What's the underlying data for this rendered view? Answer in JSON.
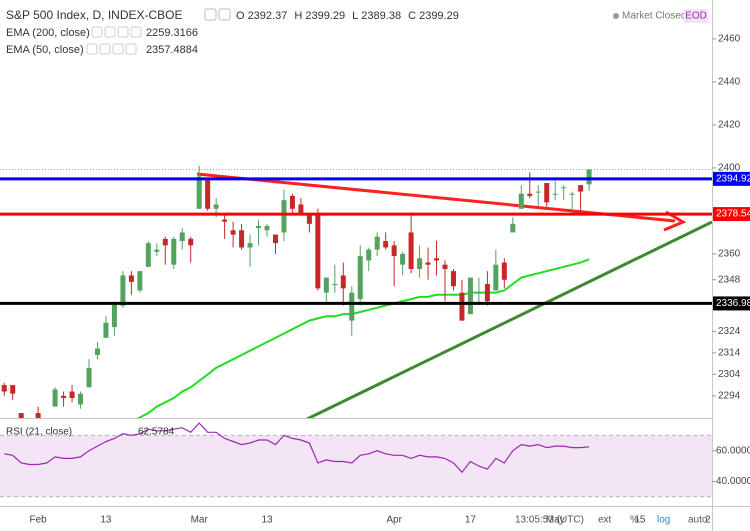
{
  "header": {
    "symbol": "S&P 500 Index, D, INDEX-CBOE",
    "ohlc_labels": [
      "O",
      "H",
      "L",
      "C"
    ],
    "status": "Market Closed",
    "eod": "EOD"
  },
  "toolbar": {
    "time": "13:05:53 (UTC)",
    "buttons": [
      "ext",
      "%",
      "log",
      "auto"
    ]
  },
  "chart_data": [
    {
      "type": "candlestick",
      "categories": [
        null,
        null,
        null,
        null,
        "Feb",
        null,
        null,
        null,
        null,
        null,
        null,
        null,
        "13",
        null,
        null,
        null,
        null,
        null,
        null,
        null,
        null,
        null,
        null,
        "Mar",
        null,
        null,
        null,
        null,
        null,
        null,
        null,
        "13",
        null,
        null,
        null,
        null,
        null,
        null,
        null,
        null,
        null,
        null,
        null,
        null,
        null,
        null,
        "Apr",
        null,
        null,
        null,
        null,
        null,
        null,
        null,
        null,
        "17",
        null,
        null,
        null,
        null,
        null,
        null,
        null,
        null,
        null,
        "May",
        null,
        null,
        null,
        null,
        null,
        null,
        null,
        null,
        null,
        "15",
        null,
        null,
        null,
        null,
        null,
        null,
        null,
        "2"
      ],
      "open": [
        2299,
        2299,
        2286,
        2275,
        2286,
        2277,
        2289,
        2294,
        2296,
        2290,
        2298,
        2313,
        2321,
        2326,
        2336,
        2350,
        2343,
        2354,
        2361,
        2367,
        2355,
        2366,
        2367,
        2381,
        2395,
        2381,
        2376,
        2371,
        2371,
        2363,
        2372,
        2371,
        2369,
        2370,
        2387,
        2383,
        2378,
        2379,
        2342,
        2346,
        2350,
        2329,
        2339,
        2357,
        2362,
        2366,
        2364,
        2355,
        2370,
        2353,
        2356,
        2358,
        2355,
        2352,
        2342,
        2332,
        2342,
        2346,
        2343,
        2356,
        2370,
        2381,
        2388,
        2389,
        2393,
        2388,
        2391,
        2388,
        2392,
        2392.37,
        null,
        null,
        null,
        null,
        null,
        null,
        null,
        null,
        null,
        null,
        null,
        null,
        null,
        null
      ],
      "high": [
        2300,
        2299,
        2286,
        2281,
        2289,
        2283,
        2298,
        2296,
        2299,
        2296,
        2311,
        2319,
        2331,
        2338,
        2352,
        2352,
        2352,
        2366,
        2365,
        2368,
        2368,
        2372,
        2368,
        2401,
        2395,
        2386,
        2379,
        2375,
        2374,
        2369,
        2376,
        2374,
        2369,
        2390,
        2388,
        2386,
        2379,
        2381,
        2349,
        2355,
        2356,
        2345,
        2364,
        2363,
        2370,
        2370,
        2366,
        2361,
        2378,
        2364,
        2363,
        2366,
        2357,
        2353,
        2348,
        2349,
        2349,
        2352,
        2362,
        2358,
        2377,
        2392,
        2398,
        2392,
        2393,
        2394,
        2392,
        2389,
        2392,
        2399.29,
        null,
        null,
        null,
        null,
        null,
        null,
        null,
        null,
        null,
        null,
        null,
        null,
        null,
        null
      ],
      "low": [
        2294,
        2292,
        2268,
        2267,
        2272,
        2271,
        2289,
        2289,
        2291,
        2288,
        2298,
        2311,
        2321,
        2322,
        2335,
        2341,
        2342,
        2354,
        2359,
        2355,
        2353,
        2362,
        2356,
        2381,
        2380,
        2377,
        2367,
        2363,
        2362,
        2354,
        2364,
        2368,
        2360,
        2366,
        2378,
        2378,
        2370,
        2343,
        2337,
        2342,
        2336,
        2322,
        2336,
        2352,
        2359,
        2362,
        2345,
        2350,
        2351,
        2349,
        2348,
        2350,
        2338,
        2343,
        2329,
        2332,
        2337,
        2336,
        2343,
        2344,
        2370,
        2381,
        2386,
        2382,
        2382,
        2385,
        2385,
        2380,
        2380,
        2389.38,
        null,
        null,
        null,
        null,
        null,
        null,
        null,
        null,
        null,
        null,
        null,
        null,
        null,
        null
      ],
      "close": [
        2296,
        2295,
        2281,
        2279,
        2279,
        2281,
        2297,
        2293,
        2293,
        2295,
        2307,
        2316,
        2328,
        2337,
        2350,
        2347,
        2352,
        2365,
        2362,
        2364,
        2367,
        2370,
        2364,
        2396,
        2381,
        2383,
        2375,
        2369,
        2363,
        2365,
        2373,
        2373,
        2365,
        2385,
        2381,
        2378,
        2374,
        2344,
        2349,
        2346,
        2344,
        2342,
        2359,
        2362,
        2368,
        2363,
        2359,
        2360,
        2353,
        2358,
        2355,
        2357,
        2353,
        2345,
        2329,
        2349,
        2342,
        2338,
        2355,
        2348,
        2374,
        2388,
        2387,
        2389,
        2384,
        2388,
        2391,
        2388,
        2389,
        2399.29,
        null,
        null,
        null,
        null,
        null,
        null,
        null,
        null,
        null,
        null,
        null,
        null,
        null,
        null
      ],
      "up_color": "#53a25f",
      "down_color": "#c62828",
      "indicators": [
        {
          "name": "EMA (200, close)",
          "color": "#e53935",
          "last": 2259.3166
        },
        {
          "name": "EMA (50, close)",
          "color": "#22dd22",
          "values": [
            2268,
            2269,
            2270,
            2270,
            2270,
            2271,
            2272,
            2273,
            2273,
            2274,
            2275,
            2276,
            2277,
            2279,
            2281,
            2282,
            2284,
            2286,
            2289,
            2291,
            2293,
            2296,
            2298,
            2301,
            2304,
            2307,
            2309,
            2311,
            2313,
            2315,
            2317,
            2319,
            2321,
            2323,
            2325,
            2327,
            2329,
            2330,
            2331,
            2331,
            2332,
            2332,
            2333,
            2334,
            2335,
            2336,
            2337,
            2338,
            2339,
            2340,
            2340,
            2341,
            2341,
            2341,
            2341,
            2342,
            2342,
            2342,
            2342,
            2343,
            2346,
            2349,
            2350,
            2351,
            2352,
            2353,
            2354,
            2355,
            2356,
            2357.4884,
            null,
            null,
            null,
            null,
            null,
            null,
            null,
            null,
            null,
            null,
            null,
            null,
            null,
            null
          ]
        }
      ],
      "hlines": [
        {
          "value": 2394.92,
          "color": "#0000ff"
        },
        {
          "value": 2378.54,
          "color": "#ff0000"
        },
        {
          "value": 2336.98,
          "color": "#000000"
        }
      ],
      "ylim": [
        2283.7,
        2478.1
      ],
      "yticks": [
        2460,
        2440,
        2420,
        2400,
        2360,
        2348,
        2324,
        2314,
        2304,
        2294
      ]
    },
    {
      "type": "rsi",
      "title": "RSI (21, close)",
      "color": "#9c27b0",
      "values": [
        58,
        57,
        52,
        51,
        51,
        52,
        56,
        55,
        55,
        56,
        60,
        63,
        66,
        68,
        71,
        70,
        71,
        74,
        73,
        73,
        74,
        75,
        72,
        78,
        72,
        72,
        68,
        66,
        64,
        65,
        67,
        67,
        64,
        70,
        68,
        67,
        65,
        52,
        54,
        53,
        53,
        52,
        57,
        58,
        60,
        58,
        57,
        57,
        55,
        57,
        56,
        56,
        55,
        52,
        46,
        53,
        50,
        48,
        55,
        52,
        60,
        64,
        63,
        64,
        62,
        63,
        63,
        62,
        62,
        62.5784,
        null,
        null,
        null,
        null,
        null,
        null,
        null,
        null,
        null,
        null,
        null,
        null,
        null,
        null
      ],
      "band": [
        30,
        70
      ],
      "ylim": [
        24,
        80
      ],
      "yticks": [
        {
          "value": 60,
          "label": "60.0000"
        },
        {
          "value": 40,
          "label": "40.0000"
        }
      ]
    }
  ]
}
